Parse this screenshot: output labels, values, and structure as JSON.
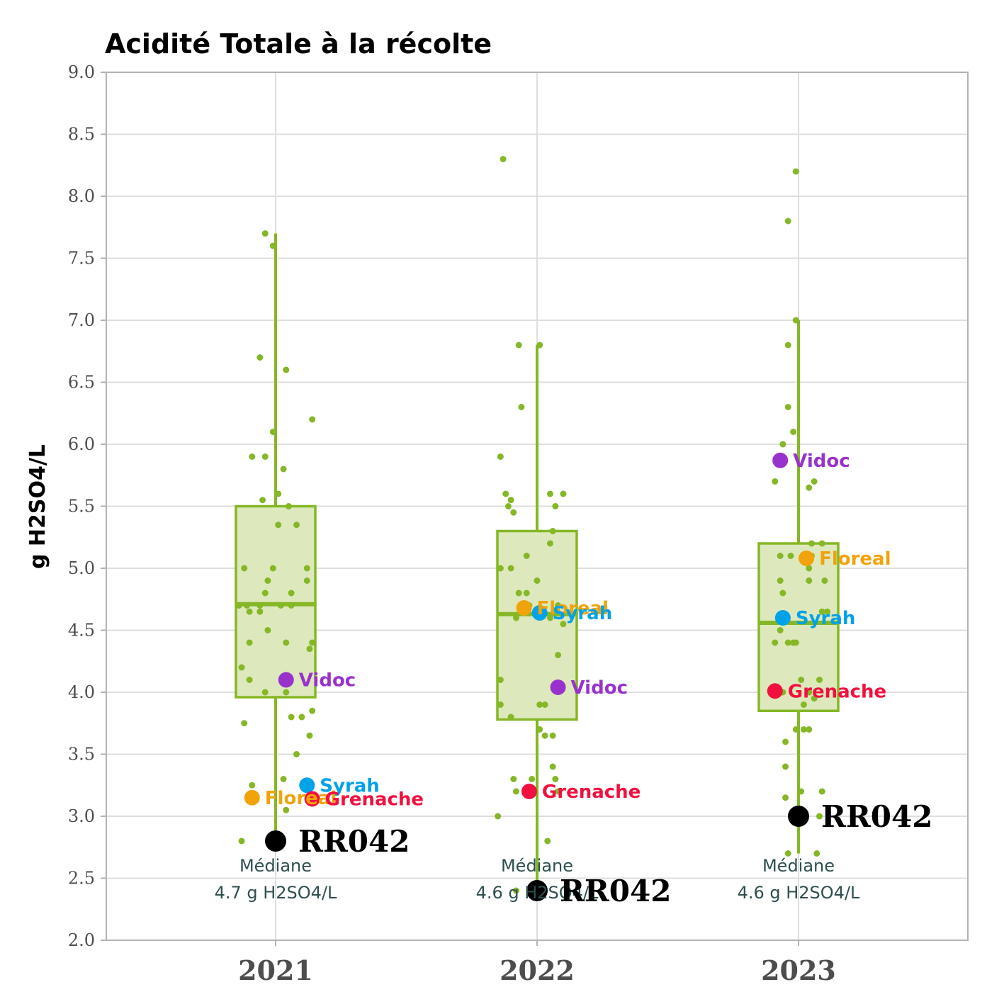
{
  "chart_data": {
    "type": "boxplot",
    "title": "Acidité Totale à la récolte",
    "ylabel": "g H2SO4/L",
    "ylim": [
      2.0,
      9.0
    ],
    "yticks": [
      "2.0",
      "2.5",
      "3.0",
      "3.5",
      "4.0",
      "4.5",
      "5.0",
      "5.5",
      "6.0",
      "6.5",
      "7.0",
      "7.5",
      "8.0",
      "8.5",
      "9.0"
    ],
    "categories": [
      "2021",
      "2022",
      "2023"
    ],
    "colors": {
      "box_stroke": "#85b726",
      "box_fill": "#dde9bd",
      "jitter": "#85b726",
      "grid": "#dedede",
      "frame": "#b3b3b3",
      "median_text": "#2f4f4f",
      "Vidoc": "#9932cc",
      "Syrah": "#00a2e8",
      "Floreal": "#f0a30a",
      "Grenache": "#f0113f",
      "RR042": "#000000"
    },
    "groups": [
      {
        "year": "2021",
        "box": {
          "q1": 3.96,
          "median": 4.71,
          "q3": 5.5,
          "whisker_low": 2.8,
          "whisker_high": 7.7
        },
        "median_label": [
          "Médiane",
          "4.7 g H2SO4/L"
        ],
        "jitter": [
          [
            -0.04,
            7.7
          ],
          [
            -0.01,
            7.6
          ],
          [
            -0.06,
            6.7
          ],
          [
            0.04,
            6.6
          ],
          [
            0.14,
            6.2
          ],
          [
            -0.01,
            6.1
          ],
          [
            -0.09,
            5.9
          ],
          [
            -0.04,
            5.9
          ],
          [
            0.03,
            5.8
          ],
          [
            0.01,
            5.6
          ],
          [
            -0.05,
            5.55
          ],
          [
            0.05,
            5.5
          ],
          [
            0.01,
            5.35
          ],
          [
            0.08,
            5.35
          ],
          [
            -0.12,
            5.0
          ],
          [
            -0.01,
            5.0
          ],
          [
            0.12,
            5.0
          ],
          [
            -0.03,
            4.9
          ],
          [
            0.12,
            4.9
          ],
          [
            -0.04,
            4.8
          ],
          [
            0.06,
            4.8
          ],
          [
            -0.14,
            4.7
          ],
          [
            -0.11,
            4.7
          ],
          [
            -0.06,
            4.7
          ],
          [
            0.02,
            4.7
          ],
          [
            0.06,
            4.7
          ],
          [
            -0.1,
            4.65
          ],
          [
            -0.06,
            4.65
          ],
          [
            -0.03,
            4.5
          ],
          [
            -0.1,
            4.4
          ],
          [
            0.04,
            4.4
          ],
          [
            0.14,
            4.4
          ],
          [
            0.13,
            4.35
          ],
          [
            -0.13,
            4.2
          ],
          [
            -0.1,
            4.1
          ],
          [
            -0.04,
            4.0
          ],
          [
            0.04,
            4.0
          ],
          [
            0.14,
            3.85
          ],
          [
            0.06,
            3.8
          ],
          [
            0.1,
            3.8
          ],
          [
            -0.12,
            3.75
          ],
          [
            0.13,
            3.65
          ],
          [
            0.08,
            3.5
          ],
          [
            0.03,
            3.3
          ],
          [
            -0.09,
            3.25
          ],
          [
            0.04,
            3.05
          ],
          [
            -0.13,
            2.8
          ]
        ],
        "varieties": [
          {
            "name": "Vidoc",
            "value": 4.1,
            "dx": 0.04
          },
          {
            "name": "Syrah",
            "value": 3.25,
            "dx": 0.12
          },
          {
            "name": "Floreal",
            "value": 3.15,
            "dx": -0.09
          },
          {
            "name": "Grenache",
            "value": 3.14,
            "dx": 0.14
          }
        ],
        "reference": {
          "name": "RR042",
          "value": 2.8,
          "dx": 0.0
        }
      },
      {
        "year": "2022",
        "box": {
          "q1": 3.78,
          "median": 4.63,
          "q3": 5.3,
          "whisker_low": 2.4,
          "whisker_high": 6.8
        },
        "median_label": [
          "Médiane",
          "4.6 g H2SO4/L"
        ],
        "jitter": [
          [
            -0.13,
            8.3
          ],
          [
            -0.07,
            6.8
          ],
          [
            0.01,
            6.8
          ],
          [
            -0.06,
            6.3
          ],
          [
            -0.14,
            5.9
          ],
          [
            -0.12,
            5.6
          ],
          [
            -0.1,
            5.55
          ],
          [
            -0.11,
            5.5
          ],
          [
            -0.09,
            5.45
          ],
          [
            0.05,
            5.6
          ],
          [
            0.1,
            5.6
          ],
          [
            0.07,
            5.5
          ],
          [
            0.06,
            5.3
          ],
          [
            0.05,
            5.2
          ],
          [
            -0.04,
            5.1
          ],
          [
            -0.14,
            5.0
          ],
          [
            -0.1,
            5.0
          ],
          [
            0.0,
            4.9
          ],
          [
            -0.07,
            4.8
          ],
          [
            -0.04,
            4.8
          ],
          [
            0.08,
            4.7
          ],
          [
            -0.03,
            4.7
          ],
          [
            -0.08,
            4.6
          ],
          [
            0.05,
            4.6
          ],
          [
            0.1,
            4.55
          ],
          [
            0.08,
            4.3
          ],
          [
            -0.14,
            4.1
          ],
          [
            0.01,
            3.9
          ],
          [
            0.03,
            3.9
          ],
          [
            -0.14,
            3.9
          ],
          [
            -0.1,
            3.8
          ],
          [
            0.01,
            3.7
          ],
          [
            0.03,
            3.65
          ],
          [
            0.06,
            3.65
          ],
          [
            0.06,
            3.4
          ],
          [
            -0.09,
            3.3
          ],
          [
            -0.02,
            3.3
          ],
          [
            0.07,
            3.3
          ],
          [
            -0.08,
            3.2
          ],
          [
            0.08,
            3.2
          ],
          [
            -0.15,
            3.0
          ],
          [
            0.04,
            2.8
          ],
          [
            -0.08,
            2.4
          ]
        ],
        "varieties": [
          {
            "name": "Floreal",
            "value": 4.68,
            "dx": -0.05
          },
          {
            "name": "Syrah",
            "value": 4.64,
            "dx": 0.01
          },
          {
            "name": "Vidoc",
            "value": 4.04,
            "dx": 0.08
          },
          {
            "name": "Grenache",
            "value": 3.2,
            "dx": -0.03
          }
        ],
        "reference": {
          "name": "RR042",
          "value": 2.4,
          "dx": 0.0
        }
      },
      {
        "year": "2023",
        "box": {
          "q1": 3.85,
          "median": 4.56,
          "q3": 5.2,
          "whisker_low": 2.7,
          "whisker_high": 7.0
        },
        "median_label": [
          "Médiane",
          "4.6 g H2SO4/L"
        ],
        "jitter": [
          [
            -0.01,
            8.2
          ],
          [
            -0.04,
            7.8
          ],
          [
            -0.01,
            7.0
          ],
          [
            -0.04,
            6.8
          ],
          [
            -0.04,
            6.3
          ],
          [
            -0.02,
            6.1
          ],
          [
            -0.06,
            6.0
          ],
          [
            -0.09,
            5.7
          ],
          [
            0.06,
            5.7
          ],
          [
            0.04,
            5.65
          ],
          [
            0.05,
            5.2
          ],
          [
            0.09,
            5.2
          ],
          [
            -0.07,
            5.1
          ],
          [
            -0.03,
            5.1
          ],
          [
            0.05,
            5.1
          ],
          [
            0.04,
            5.0
          ],
          [
            -0.07,
            4.9
          ],
          [
            0.04,
            4.9
          ],
          [
            0.1,
            4.9
          ],
          [
            -0.06,
            4.8
          ],
          [
            0.09,
            4.65
          ],
          [
            0.11,
            4.65
          ],
          [
            -0.07,
            4.5
          ],
          [
            -0.09,
            4.4
          ],
          [
            -0.04,
            4.4
          ],
          [
            -0.02,
            4.4
          ],
          [
            -0.01,
            4.4
          ],
          [
            0.08,
            4.1
          ],
          [
            0.01,
            4.1
          ],
          [
            -0.06,
            4.0
          ],
          [
            0.04,
            4.0
          ],
          [
            0.06,
            3.95
          ],
          [
            0.02,
            3.9
          ],
          [
            -0.01,
            3.7
          ],
          [
            0.02,
            3.7
          ],
          [
            0.04,
            3.7
          ],
          [
            -0.05,
            3.6
          ],
          [
            -0.05,
            3.4
          ],
          [
            0.01,
            3.2
          ],
          [
            0.09,
            3.2
          ],
          [
            -0.05,
            3.15
          ],
          [
            0.08,
            3.0
          ],
          [
            -0.04,
            2.7
          ],
          [
            0.07,
            2.7
          ]
        ],
        "varieties": [
          {
            "name": "Vidoc",
            "value": 5.87,
            "dx": -0.07
          },
          {
            "name": "Floreal",
            "value": 5.08,
            "dx": 0.03
          },
          {
            "name": "Syrah",
            "value": 4.6,
            "dx": -0.06
          },
          {
            "name": "Grenache",
            "value": 4.01,
            "dx": -0.09
          }
        ],
        "reference": {
          "name": "RR042",
          "value": 3.0,
          "dx": 0.0
        }
      }
    ]
  }
}
